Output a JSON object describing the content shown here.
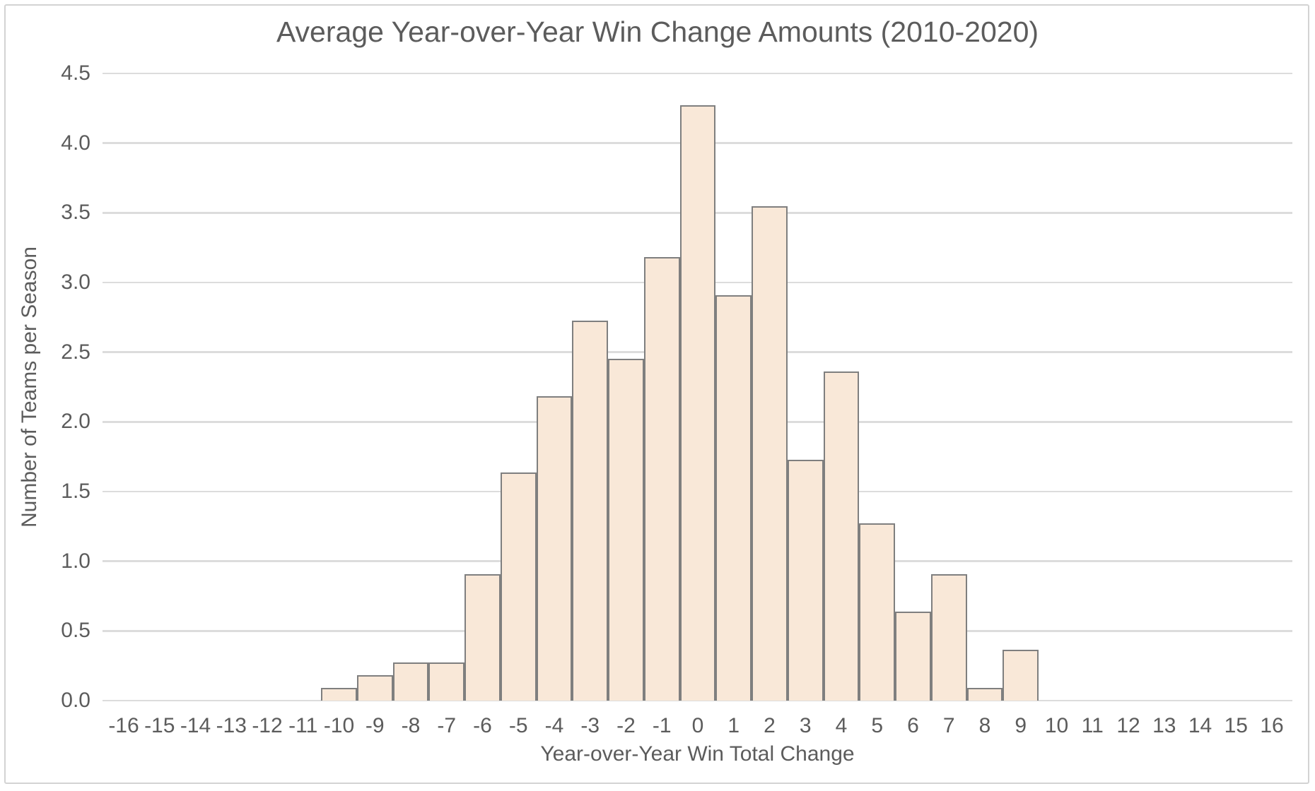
{
  "window": {
    "background_color": "#ffffff",
    "frame_border_color": "#d3d3d3"
  },
  "chart_data": {
    "type": "bar",
    "title": "Average Year-over-Year Win Change Amounts (2010-2020)",
    "xlabel": "Year-over-Year Win Total Change",
    "ylabel": "Number of Teams per Season",
    "x_axis_ticks": [
      -16,
      -15,
      -14,
      -13,
      -12,
      -11,
      -10,
      -9,
      -8,
      -7,
      -6,
      -5,
      -4,
      -3,
      -2,
      -1,
      0,
      1,
      2,
      3,
      4,
      5,
      6,
      7,
      8,
      9,
      10,
      11,
      12,
      13,
      14,
      15,
      16
    ],
    "y_axis_ticks": [
      "0.0",
      "0.5",
      "1.0",
      "1.5",
      "2.0",
      "2.5",
      "3.0",
      "3.5",
      "4.0",
      "4.5"
    ],
    "xlim": [
      -16.5,
      16.5
    ],
    "ylim": [
      0,
      4.5
    ],
    "grid": "horizontal",
    "legend": "none",
    "categories": [
      -10,
      -9,
      -8,
      -7,
      -6,
      -5,
      -4,
      -3,
      -2,
      -1,
      0,
      1,
      2,
      3,
      4,
      5,
      6,
      7,
      8,
      9
    ],
    "values": [
      0.0909,
      0.1818,
      0.2727,
      0.2727,
      0.9091,
      1.6364,
      2.1818,
      2.7273,
      2.4545,
      3.1818,
      4.2727,
      2.9091,
      3.5455,
      1.7273,
      2.3636,
      1.2727,
      0.6364,
      0.9091,
      0.0909,
      0.3636
    ],
    "colors": {
      "bar_fill": "#f9e8d8",
      "bar_border": "#7f7f7f",
      "gridline": "#dcdcdc",
      "text": "#5c5c5c"
    }
  }
}
